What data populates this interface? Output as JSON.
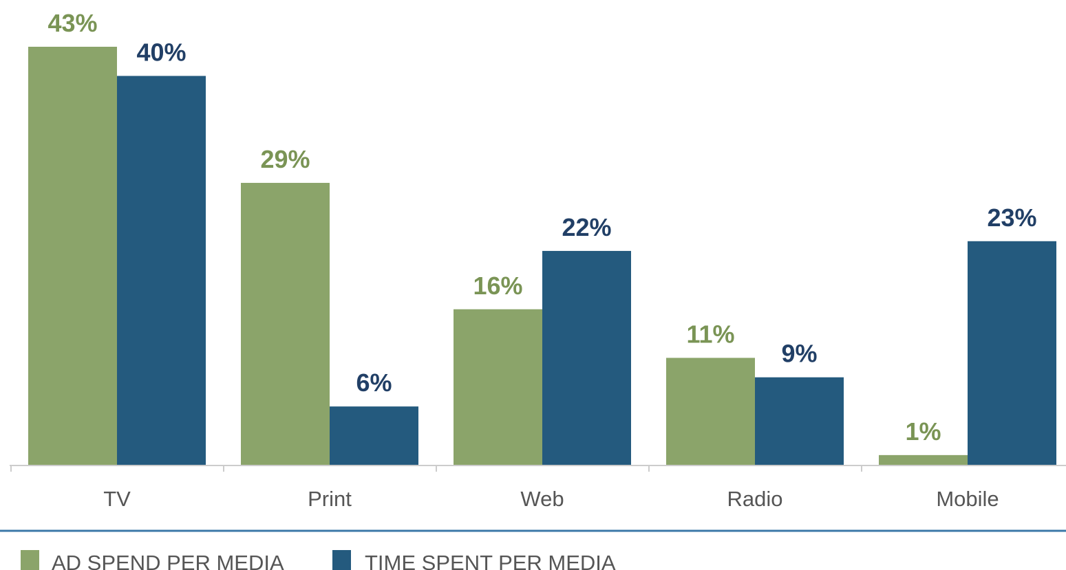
{
  "chart_data": {
    "type": "bar",
    "title": "",
    "xlabel": "",
    "ylabel": "",
    "categories": [
      "TV",
      "Print",
      "Web",
      "Radio",
      "Mobile"
    ],
    "series": [
      {
        "name": "AD SPEND PER MEDIA",
        "color": "#8ba46a",
        "values": [
          43,
          29,
          16,
          11,
          1
        ],
        "labels": [
          "43%",
          "29%",
          "16%",
          "11%",
          "1%"
        ]
      },
      {
        "name": "TIME SPENT PER MEDIA",
        "color": "#245a7e",
        "values": [
          40,
          6,
          22,
          9,
          23
        ],
        "labels": [
          "40%",
          "6%",
          "22%",
          "9%",
          "23%"
        ]
      }
    ],
    "ylim": [
      0,
      43
    ],
    "grid": false,
    "legend": "bottom-left",
    "value_label_colors": [
      "#7a9455",
      "#213f66"
    ]
  }
}
